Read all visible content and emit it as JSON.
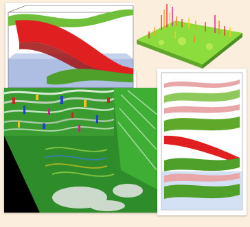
{
  "scene": {
    "background_color": "#fbeedd",
    "panels": [
      {
        "id": "panel-a",
        "depicts": "box-with-red-and-green-surfaces"
      },
      {
        "id": "panel-b",
        "depicts": "height-field-terrain"
      },
      {
        "id": "panel-c",
        "depicts": "fault-attribute-volume"
      },
      {
        "id": "panel-d",
        "depicts": "stacked-horizon-layers"
      }
    ],
    "colors": {
      "red_surface": "#e02020",
      "green_surface": "#6fbf3a",
      "blue_water": "#8fa6d6",
      "terrain_green": "#8bdc3c",
      "fault_white": "#e8e8e8",
      "black_wedge": "#000000",
      "pink_layer": "#e9a6a6"
    }
  }
}
